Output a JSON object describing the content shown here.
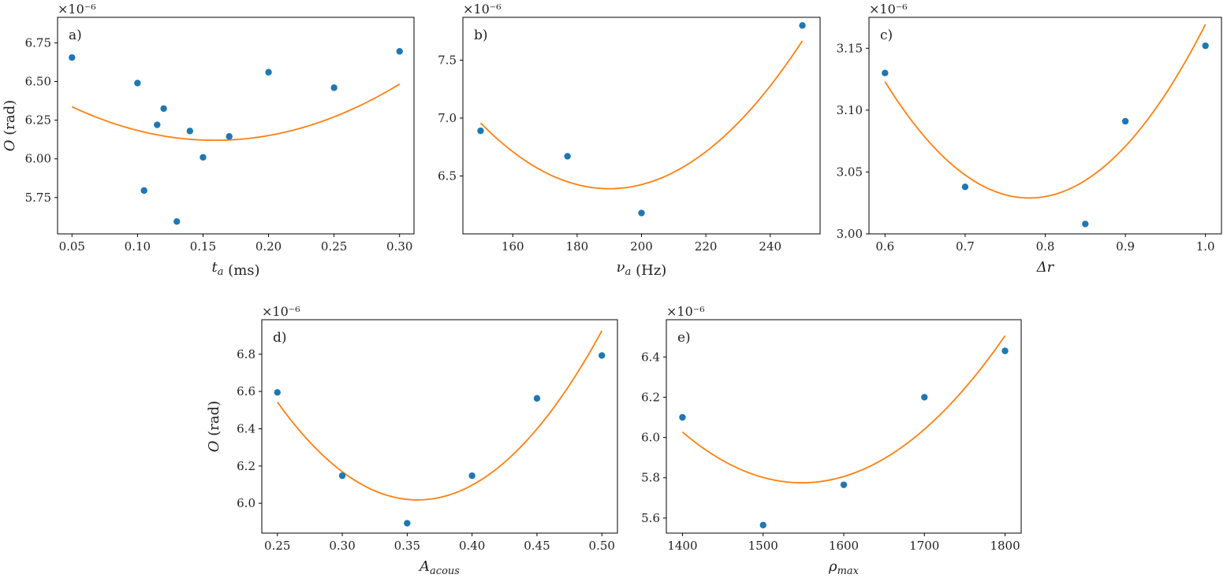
{
  "colors": {
    "points": "#1f77b4",
    "fit": "#ff7f0e",
    "axes": "#000000"
  },
  "chart_data": [
    {
      "type": "scatter",
      "panel_label": "a)",
      "ylabel": "O (rad)",
      "xlabel": "t_a (ms)",
      "xlabel_parts": [
        {
          "text": "t",
          "italic": true
        },
        {
          "text": "a",
          "italic": true,
          "sub": true
        },
        {
          "text": " (ms)",
          "italic": false
        }
      ],
      "y_multiplier": "×10⁻⁶",
      "xlim": [
        0.039,
        0.311
      ],
      "ylim": [
        5.515,
        6.915
      ],
      "xticks": [
        0.05,
        0.1,
        0.15,
        0.2,
        0.25,
        0.3
      ],
      "xtick_labels": [
        "0.05",
        "0.10",
        "0.15",
        "0.20",
        "0.25",
        "0.30"
      ],
      "yticks": [
        5.75,
        6.0,
        6.25,
        6.5,
        6.75
      ],
      "ytick_labels": [
        "5.75",
        "6.00",
        "6.25",
        "6.50",
        "6.75"
      ],
      "points": [
        {
          "x": 0.05,
          "y": 6.655
        },
        {
          "x": 0.1,
          "y": 6.49
        },
        {
          "x": 0.105,
          "y": 5.795
        },
        {
          "x": 0.115,
          "y": 6.22
        },
        {
          "x": 0.12,
          "y": 6.325
        },
        {
          "x": 0.13,
          "y": 5.595
        },
        {
          "x": 0.14,
          "y": 6.18
        },
        {
          "x": 0.15,
          "y": 6.01
        },
        {
          "x": 0.17,
          "y": 6.145
        },
        {
          "x": 0.2,
          "y": 6.56
        },
        {
          "x": 0.25,
          "y": 6.46
        },
        {
          "x": 0.3,
          "y": 6.695
        }
      ],
      "fit": {
        "a": 18.27,
        "b": 0.159,
        "c": 6.12,
        "x_range": [
          0.05,
          0.3
        ]
      }
    },
    {
      "type": "scatter",
      "panel_label": "b)",
      "ylabel": "",
      "xlabel": "ν_a (Hz)",
      "xlabel_parts": [
        {
          "text": "ν",
          "italic": true
        },
        {
          "text": "a",
          "italic": true,
          "sub": true
        },
        {
          "text": " (Hz)",
          "italic": false
        }
      ],
      "y_multiplier": "×10⁻⁶",
      "xlim": [
        144.5,
        255.5
      ],
      "ylim": [
        6.0,
        7.87
      ],
      "xticks": [
        160,
        180,
        200,
        220,
        240
      ],
      "xtick_labels": [
        "160",
        "180",
        "200",
        "220",
        "240"
      ],
      "yticks": [
        6.5,
        7.0,
        7.5
      ],
      "ytick_labels": [
        "6.5",
        "7.0",
        "7.5"
      ],
      "points": [
        {
          "x": 150,
          "y": 6.89
        },
        {
          "x": 177,
          "y": 6.67
        },
        {
          "x": 200,
          "y": 6.18
        },
        {
          "x": 250,
          "y": 7.8
        }
      ],
      "fit": {
        "a": 0.000355,
        "b": 190,
        "c": 6.39,
        "x_range": [
          150,
          250
        ]
      }
    },
    {
      "type": "scatter",
      "panel_label": "c)",
      "ylabel": "",
      "xlabel": "Δr",
      "xlabel_parts": [
        {
          "text": "Δr",
          "italic": true
        }
      ],
      "y_multiplier": "×10⁻⁶",
      "xlim": [
        0.58,
        1.02
      ],
      "ylim": [
        3.0,
        3.175
      ],
      "xticks": [
        0.6,
        0.7,
        0.8,
        0.9,
        1.0
      ],
      "xtick_labels": [
        "0.6",
        "0.7",
        "0.8",
        "0.9",
        "1.0"
      ],
      "yticks": [
        3.0,
        3.05,
        3.1,
        3.15
      ],
      "ytick_labels": [
        "3.00",
        "3.05",
        "3.10",
        "3.15"
      ],
      "points": [
        {
          "x": 0.6,
          "y": 3.13
        },
        {
          "x": 0.7,
          "y": 3.038
        },
        {
          "x": 0.85,
          "y": 3.008
        },
        {
          "x": 0.9,
          "y": 3.091
        },
        {
          "x": 1.0,
          "y": 3.152
        }
      ],
      "fit": {
        "a": 2.9,
        "b": 0.78,
        "c": 3.029,
        "x_range": [
          0.6,
          1.0
        ]
      }
    },
    {
      "type": "scatter",
      "panel_label": "d)",
      "ylabel": "O (rad)",
      "xlabel": "A_acous",
      "xlabel_parts": [
        {
          "text": "A",
          "italic": true
        },
        {
          "text": "acous",
          "italic": true,
          "sub": true
        }
      ],
      "y_multiplier": "×10⁻⁶",
      "xlim": [
        0.238,
        0.512
      ],
      "ylim": [
        5.84,
        6.985
      ],
      "xticks": [
        0.25,
        0.3,
        0.35,
        0.4,
        0.45,
        0.5
      ],
      "xtick_labels": [
        "0.25",
        "0.30",
        "0.35",
        "0.40",
        "0.45",
        "0.50"
      ],
      "yticks": [
        6.0,
        6.2,
        6.4,
        6.6,
        6.8
      ],
      "ytick_labels": [
        "6.0",
        "6.2",
        "6.4",
        "6.6",
        "6.8"
      ],
      "points": [
        {
          "x": 0.25,
          "y": 6.595
        },
        {
          "x": 0.3,
          "y": 6.148
        },
        {
          "x": 0.35,
          "y": 5.893
        },
        {
          "x": 0.4,
          "y": 6.148
        },
        {
          "x": 0.45,
          "y": 6.563
        },
        {
          "x": 0.5,
          "y": 6.793
        }
      ],
      "fit": {
        "a": 45.0,
        "b": 0.358,
        "c": 6.018,
        "x_range": [
          0.25,
          0.5
        ]
      }
    },
    {
      "type": "scatter",
      "panel_label": "e)",
      "ylabel": "",
      "xlabel": "ρ_max",
      "xlabel_parts": [
        {
          "text": "ρ",
          "italic": true
        },
        {
          "text": "max",
          "italic": true,
          "sub": true
        }
      ],
      "y_multiplier": "×10⁻⁶",
      "xlim": [
        1380,
        1820
      ],
      "ylim": [
        5.525,
        6.585
      ],
      "xticks": [
        1400,
        1500,
        1600,
        1700,
        1800
      ],
      "xtick_labels": [
        "1400",
        "1500",
        "1600",
        "1700",
        "1800"
      ],
      "yticks": [
        5.6,
        5.8,
        6.0,
        6.2,
        6.4
      ],
      "ytick_labels": [
        "5.6",
        "5.8",
        "6.0",
        "6.2",
        "6.4"
      ],
      "points": [
        {
          "x": 1400,
          "y": 6.1
        },
        {
          "x": 1500,
          "y": 5.565
        },
        {
          "x": 1600,
          "y": 5.765
        },
        {
          "x": 1700,
          "y": 6.2
        },
        {
          "x": 1800,
          "y": 6.43
        }
      ],
      "fit": {
        "a": 1.15e-05,
        "b": 1548,
        "c": 5.775,
        "x_range": [
          1400,
          1800
        ]
      }
    }
  ]
}
